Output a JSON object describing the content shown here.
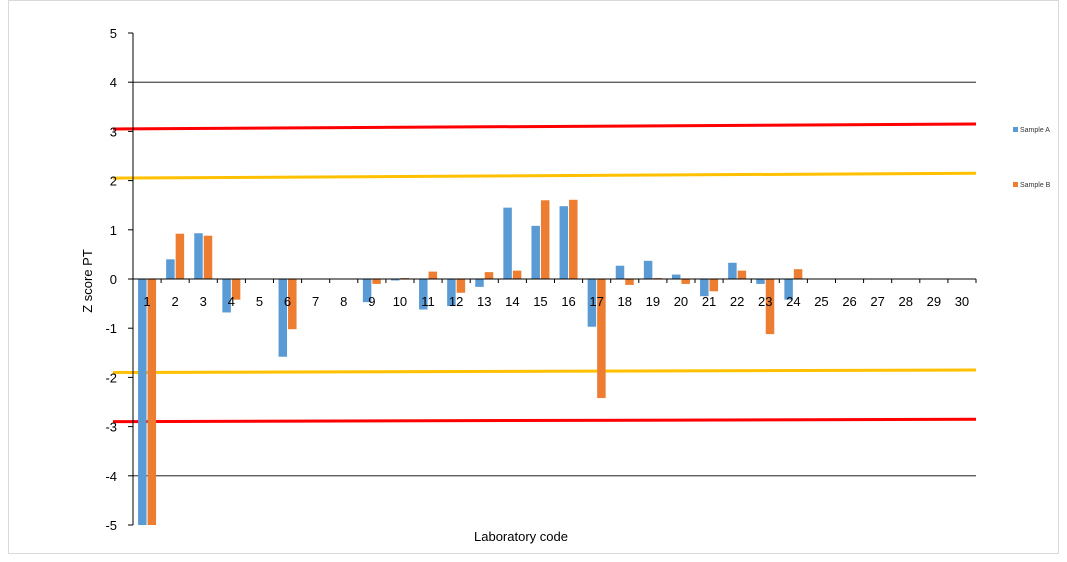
{
  "chart_data": {
    "type": "bar",
    "title": "",
    "xlabel": "Laboratory code",
    "ylabel": "Z score  PT",
    "ylim": [
      -5,
      5
    ],
    "yticks": [
      5,
      4,
      3,
      2,
      1,
      0,
      -1,
      -2,
      -3,
      -4,
      -5
    ],
    "categories": [
      "1",
      "2",
      "3",
      "4",
      "5",
      "6",
      "7",
      "8",
      "9",
      "10",
      "11",
      "12",
      "13",
      "14",
      "15",
      "16",
      "17",
      "18",
      "19",
      "20",
      "21",
      "22",
      "23",
      "24",
      "25",
      "26",
      "27",
      "28",
      "29",
      "30"
    ],
    "series": [
      {
        "name": "Sample A",
        "color": "#5b9bd5",
        "values": [
          -5.0,
          0.4,
          0.93,
          -0.68,
          null,
          -1.58,
          null,
          null,
          -0.47,
          -0.03,
          -0.62,
          -0.55,
          -0.16,
          1.45,
          1.08,
          1.48,
          -0.97,
          0.27,
          0.37,
          0.09,
          -0.35,
          0.33,
          -0.1,
          -0.42,
          null,
          null,
          null,
          null,
          null,
          null
        ]
      },
      {
        "name": "Sample B",
        "color": "#ed7d31",
        "values": [
          -5.0,
          0.92,
          0.88,
          -0.42,
          null,
          -1.02,
          null,
          null,
          -0.1,
          0.02,
          0.15,
          -0.28,
          0.14,
          0.17,
          1.6,
          1.61,
          -2.42,
          -0.12,
          0.02,
          -0.1,
          -0.25,
          0.17,
          -1.12,
          0.2,
          null,
          null,
          null,
          null,
          null,
          null
        ]
      }
    ],
    "reference_lines": [
      {
        "name": "upper-action-limit",
        "color": "#ff0000",
        "y_start": 3.05,
        "y_end": 3.15
      },
      {
        "name": "upper-warning-limit",
        "color": "#ffc000",
        "y_start": 2.05,
        "y_end": 2.15
      },
      {
        "name": "lower-warning-limit",
        "color": "#ffc000",
        "y_start": -1.9,
        "y_end": -1.85
      },
      {
        "name": "lower-action-limit",
        "color": "#ff0000",
        "y_start": -2.9,
        "y_end": -2.85
      }
    ],
    "horizontal_gridlines_at": [
      4,
      -4
    ],
    "legend_position": "right"
  }
}
